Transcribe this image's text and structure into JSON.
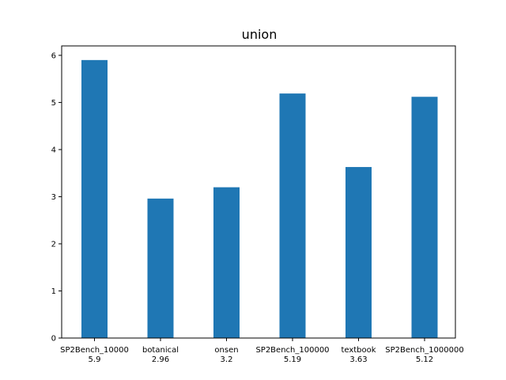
{
  "chart_data": {
    "type": "bar",
    "title": "union",
    "xlabel": "",
    "ylabel": "",
    "categories": [
      "SP2Bench_10000",
      "botanical",
      "onsen",
      "SP2Bench_100000",
      "textbook",
      "SP2Bench_1000000"
    ],
    "value_labels": [
      "5.9",
      "2.96",
      "3.2",
      "5.19",
      "3.63",
      "5.12"
    ],
    "values": [
      5.9,
      2.96,
      3.2,
      5.19,
      3.63,
      5.12
    ],
    "ylim": [
      0,
      6.2
    ],
    "yticks": [
      0,
      1,
      2,
      3,
      4,
      5,
      6
    ],
    "grid": false,
    "bar_color": "#1f77b4"
  }
}
